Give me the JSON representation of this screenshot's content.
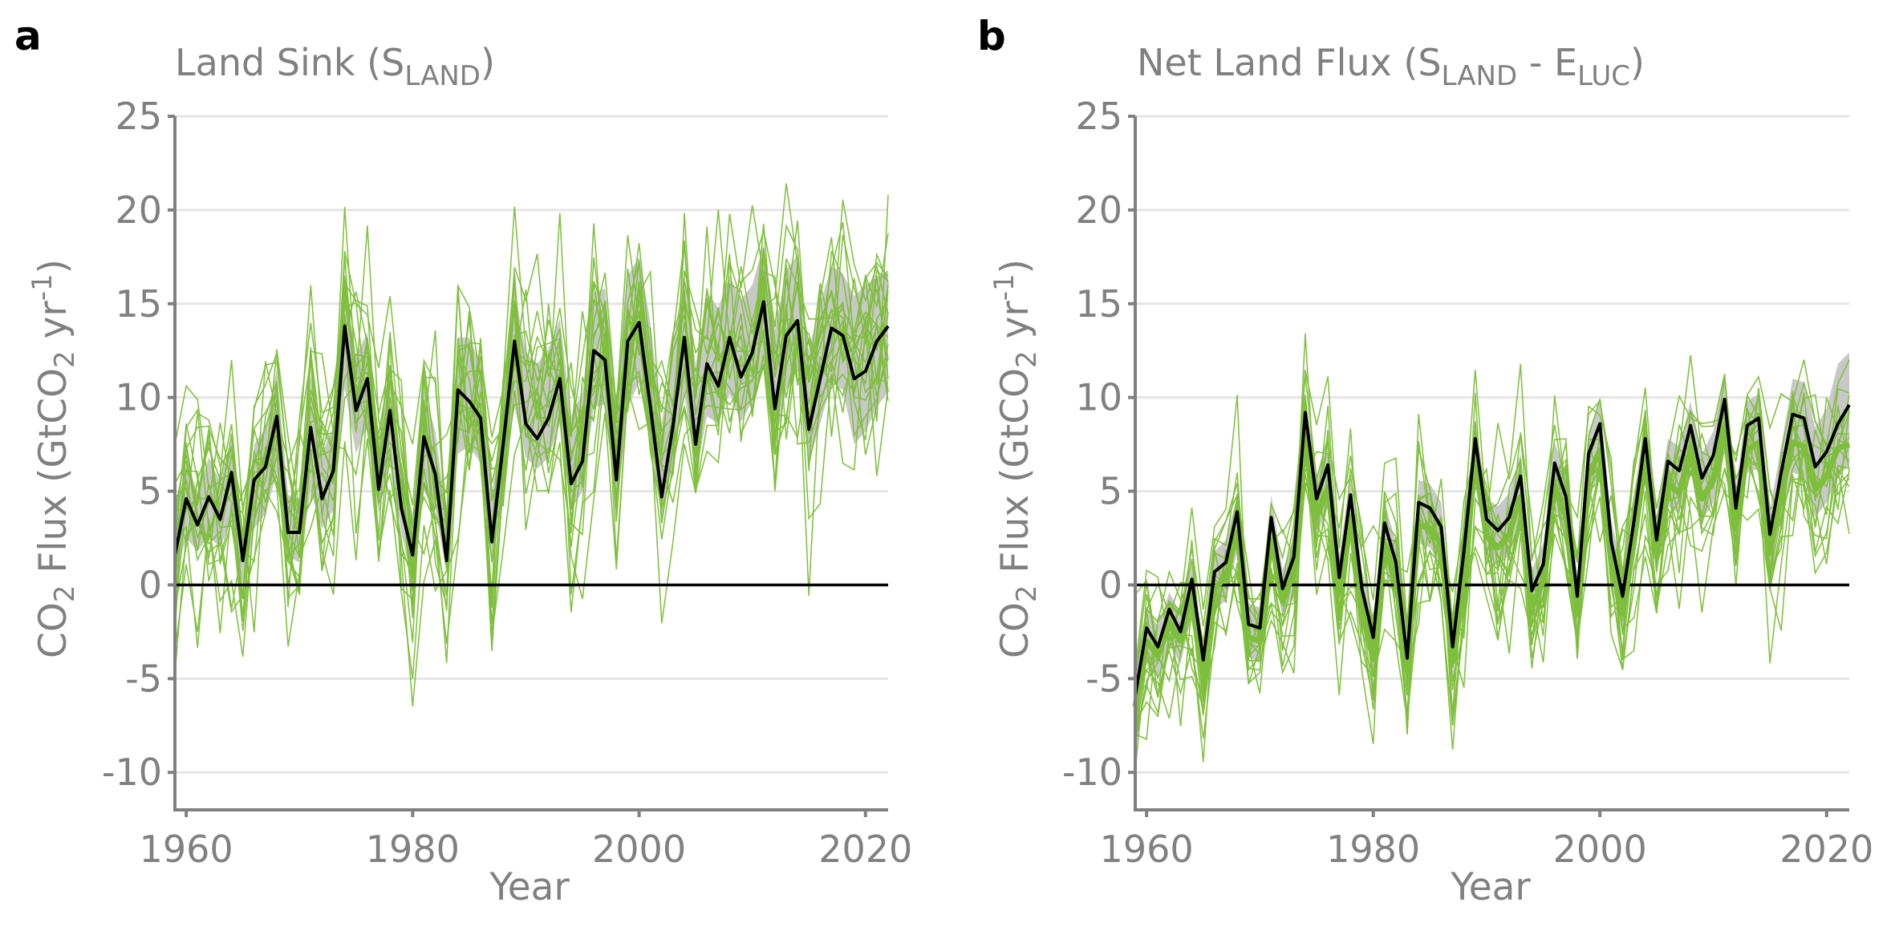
{
  "figure": {
    "y_axis_label_prefix": "CO",
    "y_axis_label_sub": "2",
    "y_axis_label_mid": " Flux (GtCO",
    "y_axis_label_sub2": "2",
    "y_axis_label_unit": " yr",
    "y_axis_label_sup": "-1",
    "y_axis_label_end": ")",
    "x_axis_label": "Year"
  },
  "colors": {
    "ensemble": "#7dbe3b",
    "range_band": "#c8c8c8",
    "observed": "#000000",
    "zero_line": "#000000",
    "axis": "#808080",
    "grid": "#e5e5e5"
  },
  "chart_data": [
    {
      "type": "line",
      "panel": "a",
      "title_text": "Land Sink (S",
      "title_sub": "LAND",
      "title_end": ")",
      "xlabel": "Year",
      "xlim": [
        1959,
        2022
      ],
      "ylim": [
        -12,
        25
      ],
      "xticks": [
        1960,
        1980,
        2000,
        2020
      ],
      "yticks": [
        -10,
        -5,
        0,
        5,
        10,
        15,
        20,
        25
      ],
      "zero_line": true,
      "x_start": 1959,
      "observed": [
        1.6,
        4.6,
        3.2,
        4.7,
        3.5,
        6.0,
        1.3,
        5.6,
        6.3,
        9.0,
        2.8,
        2.8,
        8.4,
        4.6,
        6.1,
        13.8,
        9.3,
        11.0,
        5.1,
        9.3,
        4.1,
        1.6,
        7.9,
        5.9,
        1.3,
        10.4,
        9.8,
        8.9,
        2.3,
        7.5,
        13.0,
        8.6,
        7.8,
        8.9,
        11.0,
        5.4,
        6.6,
        12.5,
        12.0,
        5.6,
        13.0,
        14.0,
        9.5,
        4.7,
        8.5,
        13.2,
        7.5,
        11.8,
        10.6,
        13.2,
        11.1,
        12.4,
        15.1,
        9.4,
        13.3,
        14.1,
        8.3,
        11.0,
        13.7,
        13.3,
        11.0,
        11.4,
        13.0,
        13.8
      ],
      "band_lower": [
        0.5,
        2.5,
        1.8,
        2.6,
        2.0,
        3.6,
        0.0,
        3.0,
        3.8,
        6.0,
        1.5,
        1.2,
        5.0,
        3.0,
        4.0,
        10.5,
        7.0,
        8.5,
        3.8,
        6.6,
        2.8,
        0.0,
        5.0,
        4.0,
        0.6,
        7.0,
        7.4,
        6.5,
        1.0,
        5.0,
        9.5,
        6.8,
        6.2,
        6.8,
        8.6,
        4.0,
        5.0,
        9.5,
        9.6,
        3.8,
        9.5,
        10.8,
        7.8,
        3.5,
        6.6,
        10.2,
        5.8,
        9.0,
        8.6,
        10.2,
        8.7,
        9.8,
        11.6,
        7.4,
        10.4,
        11.4,
        6.5,
        8.6,
        10.8,
        10.4,
        7.5,
        8.2,
        9.5,
        10.3
      ],
      "band_upper": [
        3.5,
        6.5,
        5.0,
        6.8,
        5.5,
        8.0,
        3.0,
        7.5,
        8.4,
        11.5,
        4.8,
        4.6,
        11.2,
        7.0,
        8.5,
        16.0,
        12.2,
        13.5,
        7.8,
        11.8,
        6.5,
        3.8,
        10.4,
        8.2,
        3.6,
        13.2,
        13.2,
        11.8,
        4.8,
        10.0,
        15.8,
        12.4,
        11.8,
        12.6,
        14.2,
        9.0,
        10.3,
        15.6,
        15.8,
        9.4,
        16.5,
        17.5,
        14.0,
        8.6,
        12.8,
        16.8,
        11.7,
        15.6,
        14.8,
        16.5,
        15.2,
        16.0,
        18.2,
        13.6,
        16.8,
        17.6,
        12.5,
        15.0,
        17.0,
        16.6,
        15.4,
        16.0,
        16.4,
        16.8
      ],
      "ensemble_count": 20,
      "ensemble_spread": 3.5,
      "ensemble_seed": 11
    },
    {
      "type": "line",
      "panel": "b",
      "title_text": "Net Land Flux (S",
      "title_sub": "LAND",
      "title_mid": " - E",
      "title_sub2": "LUC",
      "title_end": ")",
      "xlabel": "Year",
      "xlim": [
        1959,
        2022
      ],
      "ylim": [
        -12,
        25
      ],
      "xticks": [
        1960,
        1980,
        2000,
        2020
      ],
      "yticks": [
        -10,
        -5,
        0,
        5,
        10,
        15,
        20,
        25
      ],
      "zero_line": true,
      "x_start": 1959,
      "observed": [
        -5.9,
        -2.3,
        -3.3,
        -1.3,
        -2.5,
        0.3,
        -4.0,
        0.7,
        1.2,
        3.9,
        -2.1,
        -2.3,
        3.6,
        -0.2,
        1.5,
        9.2,
        4.6,
        6.4,
        0.4,
        4.8,
        -0.2,
        -2.8,
        3.3,
        1.2,
        -3.9,
        4.4,
        4.1,
        3.1,
        -3.3,
        1.8,
        7.8,
        3.5,
        2.9,
        3.6,
        5.8,
        -0.3,
        1.1,
        6.5,
        4.7,
        -0.6,
        7.0,
        8.6,
        2.3,
        -0.6,
        3.4,
        7.8,
        2.4,
        6.6,
        6.1,
        8.5,
        5.7,
        6.9,
        9.9,
        4.1,
        8.5,
        8.9,
        2.7,
        6.0,
        9.1,
        8.9,
        6.3,
        7.1,
        8.6,
        9.6
      ],
      "ensemble_mean": [
        -6.5,
        -3.0,
        -3.8,
        -2.0,
        -3.0,
        -0.4,
        -4.8,
        -0.2,
        0.4,
        2.8,
        -2.8,
        -3.0,
        2.4,
        -0.9,
        0.7,
        7.8,
        3.6,
        5.2,
        -0.4,
        3.6,
        -1.0,
        -3.7,
        2.2,
        0.3,
        -4.6,
        3.2,
        3.0,
        2.2,
        -4.1,
        0.8,
        6.6,
        2.6,
        2.0,
        2.7,
        4.7,
        -1.1,
        0.2,
        5.3,
        3.6,
        -1.5,
        5.8,
        7.2,
        1.3,
        -1.5,
        2.3,
        6.6,
        1.5,
        5.4,
        4.9,
        7.2,
        4.6,
        5.6,
        8.4,
        3.0,
        7.2,
        7.6,
        1.7,
        4.8,
        7.6,
        7.4,
        5.1,
        5.8,
        7.3,
        7.5
      ],
      "band_lower": [
        -7.5,
        -4.2,
        -5.0,
        -3.2,
        -4.2,
        -1.6,
        -6.0,
        -1.4,
        -0.8,
        1.8,
        -3.8,
        -4.2,
        1.6,
        -1.8,
        -0.4,
        6.5,
        2.6,
        4.2,
        -1.4,
        2.6,
        -2.0,
        -4.8,
        1.0,
        -0.8,
        -5.8,
        2.2,
        2.0,
        1.0,
        -5.2,
        -0.2,
        5.4,
        1.6,
        1.0,
        1.6,
        3.6,
        -2.2,
        -0.8,
        4.2,
        2.4,
        -2.6,
        4.6,
        6.0,
        0.2,
        -2.6,
        1.2,
        5.4,
        0.4,
        4.2,
        3.8,
        6.0,
        3.4,
        4.4,
        7.0,
        2.0,
        6.0,
        6.2,
        0.6,
        3.6,
        6.0,
        5.8,
        3.6,
        4.4,
        5.8,
        6.4
      ],
      "band_upper": [
        -4.5,
        -1.2,
        -2.2,
        -0.4,
        -1.5,
        1.4,
        -3.2,
        1.8,
        2.4,
        4.8,
        -1.0,
        -1.2,
        4.8,
        0.8,
        2.6,
        10.2,
        5.8,
        7.5,
        1.6,
        5.8,
        0.8,
        -1.6,
        4.4,
        2.3,
        -2.8,
        5.6,
        5.4,
        4.4,
        -2.2,
        2.9,
        8.8,
        4.6,
        4.2,
        4.9,
        7.0,
        0.8,
        2.2,
        7.6,
        6.0,
        0.5,
        8.2,
        9.8,
        3.5,
        0.6,
        4.6,
        9.0,
        3.6,
        7.8,
        7.4,
        9.8,
        7.0,
        8.2,
        11.2,
        5.2,
        9.8,
        10.2,
        4.0,
        7.4,
        11.0,
        10.8,
        8.4,
        9.4,
        11.8,
        12.4
      ],
      "ensemble_count": 18,
      "ensemble_spread": 2.6,
      "ensemble_seed": 23
    }
  ]
}
